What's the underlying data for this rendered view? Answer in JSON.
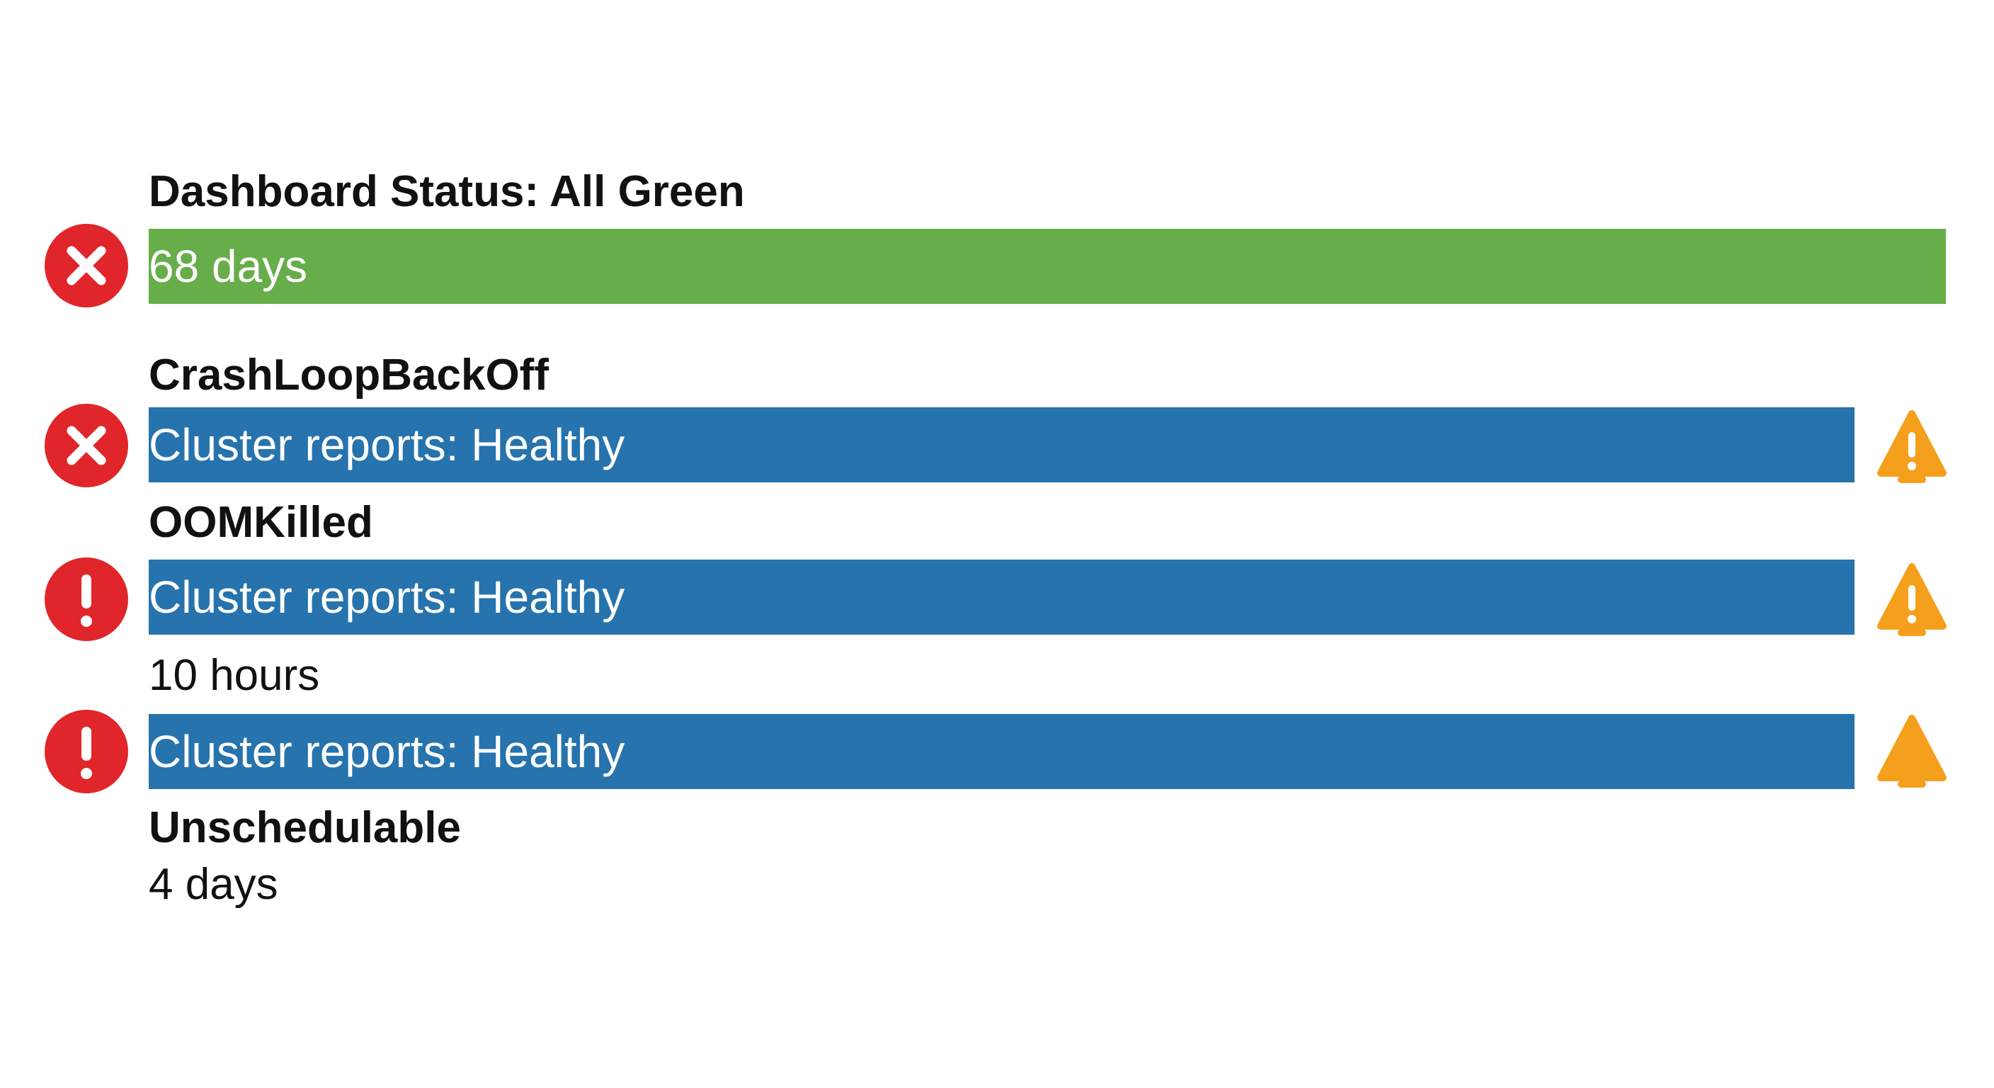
{
  "header": {
    "title": "Dashboard Status: All Green"
  },
  "items": [
    {
      "bar": "68 days"
    },
    {
      "label": "CrashLoopBackOff",
      "bar": "Cluster reports: Healthy"
    },
    {
      "label": "OOMKilled",
      "bar": "Cluster reports: Healthy"
    },
    {
      "label": "10 hours",
      "bar": "Cluster reports: Healthy"
    },
    {
      "label": "Unschedulable",
      "detail": "4 days"
    }
  ]
}
